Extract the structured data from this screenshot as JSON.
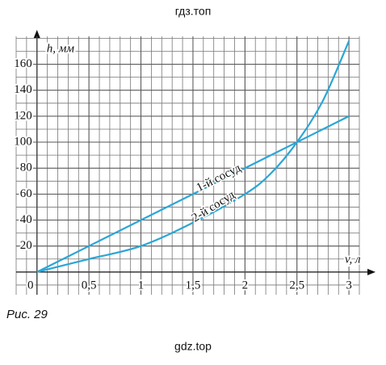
{
  "header": "гдз.топ",
  "chart_data": {
    "type": "line",
    "x_label": "v, л",
    "y_label": "h, мм",
    "x": [
      0,
      0.5,
      1,
      1.5,
      2,
      2.25,
      2.5,
      2.75,
      3
    ],
    "series": [
      {
        "name": "1-й сосуд",
        "color": "#2aa6d6",
        "values": [
          0,
          20,
          40,
          60,
          80,
          90,
          100,
          110,
          120
        ]
      },
      {
        "name": "2-й сосуд",
        "color": "#2aa6d6",
        "values": [
          0,
          10,
          20,
          38,
          60,
          76,
          100,
          132,
          178
        ]
      }
    ],
    "xlim": [
      -0.2,
      3.1
    ],
    "ylim": [
      -17.5,
      181.5
    ],
    "xticks": [
      0,
      {
        "value": 0.5,
        "label": "0,5"
      },
      1,
      {
        "value": 1.5,
        "label": "1,5"
      },
      2,
      {
        "value": 2.5,
        "label": "2,5"
      },
      3
    ],
    "yticks": [
      20,
      40,
      60,
      80,
      100,
      120,
      140,
      160
    ],
    "grid": true
  },
  "caption": "Рис. 29",
  "footer": "gdz.top"
}
